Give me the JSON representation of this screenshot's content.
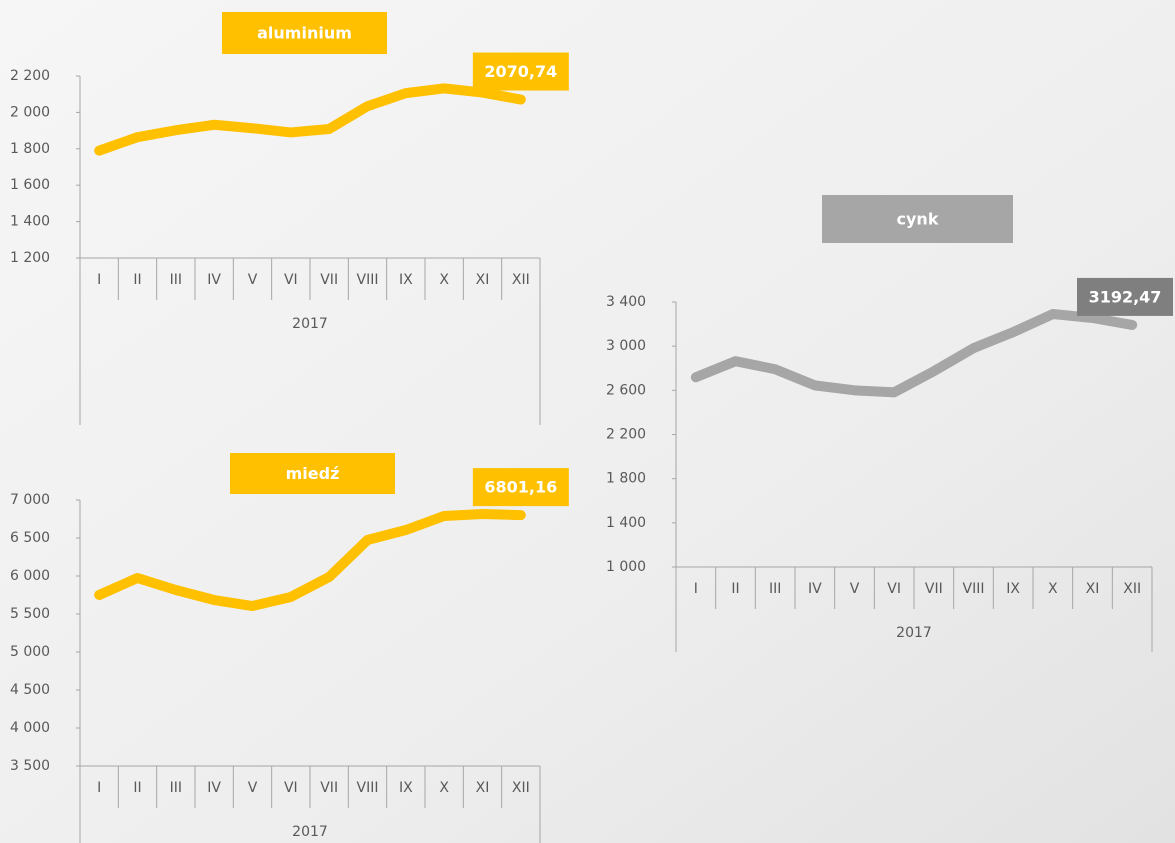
{
  "chart_data": [
    {
      "type": "line",
      "title": "aluminium",
      "color": "#ffc000",
      "label_color": "#ffc000",
      "categories": [
        "I",
        "II",
        "III",
        "IV",
        "V",
        "VI",
        "VII",
        "VIII",
        "IX",
        "X",
        "XI",
        "XII"
      ],
      "group_label": "2017",
      "values": [
        1790,
        1864,
        1902,
        1932,
        1913,
        1890,
        1909,
        2034,
        2106,
        2132,
        2109,
        2070.74
      ],
      "value_labels": [
        null,
        null,
        null,
        null,
        null,
        null,
        null,
        null,
        null,
        null,
        null,
        "2070,74"
      ],
      "ylim": [
        1200,
        2200
      ],
      "yticks": [
        {
          "value": 1200,
          "label": "1 200"
        },
        {
          "value": 1400,
          "label": "1 400"
        },
        {
          "value": 1600,
          "label": "1 600"
        },
        {
          "value": 1800,
          "label": "1 800"
        },
        {
          "value": 2000,
          "label": "2 000"
        },
        {
          "value": 2200,
          "label": "2 200"
        }
      ]
    },
    {
      "type": "line",
      "title": "miedź",
      "color": "#ffc000",
      "label_color": "#ffc000",
      "categories": [
        "I",
        "II",
        "III",
        "IV",
        "V",
        "VI",
        "VII",
        "VIII",
        "IX",
        "X",
        "XI",
        "XII"
      ],
      "group_label": "2017",
      "values": [
        5750,
        5974,
        5816,
        5684,
        5605,
        5724,
        5987,
        6474,
        6605,
        6790,
        6816,
        6801.16
      ],
      "value_labels": [
        null,
        null,
        null,
        null,
        null,
        null,
        null,
        null,
        null,
        null,
        null,
        "6801,16"
      ],
      "ylim": [
        3500,
        7000
      ],
      "yticks": [
        {
          "value": 3500,
          "label": "3 500"
        },
        {
          "value": 4000,
          "label": "4 000"
        },
        {
          "value": 4500,
          "label": "4 500"
        },
        {
          "value": 5000,
          "label": "5 000"
        },
        {
          "value": 5500,
          "label": "5 500"
        },
        {
          "value": 6000,
          "label": "6 000"
        },
        {
          "value": 6500,
          "label": "6 500"
        },
        {
          "value": 7000,
          "label": "7 000"
        }
      ]
    },
    {
      "type": "line",
      "title": "cynk",
      "color": "#a6a6a6",
      "label_color": "#7f7f7f",
      "categories": [
        "I",
        "II",
        "III",
        "IV",
        "V",
        "VI",
        "VII",
        "VIII",
        "IX",
        "X",
        "XI",
        "XII"
      ],
      "group_label": "2017",
      "values": [
        2718,
        2864,
        2791,
        2645,
        2600,
        2582,
        2773,
        2982,
        3127,
        3291,
        3255,
        3192.47
      ],
      "value_labels": [
        null,
        null,
        null,
        null,
        null,
        null,
        null,
        null,
        null,
        null,
        null,
        "3192,47"
      ],
      "ylim": [
        1000,
        3400
      ],
      "yticks": [
        {
          "value": 1000,
          "label": "1 000"
        },
        {
          "value": 1400,
          "label": "1 400"
        },
        {
          "value": 1800,
          "label": "1 800"
        },
        {
          "value": 2200,
          "label": "2 200"
        },
        {
          "value": 2600,
          "label": "2 600"
        },
        {
          "value": 3000,
          "label": "3 000"
        },
        {
          "value": 3400,
          "label": "3 400"
        }
      ]
    }
  ]
}
